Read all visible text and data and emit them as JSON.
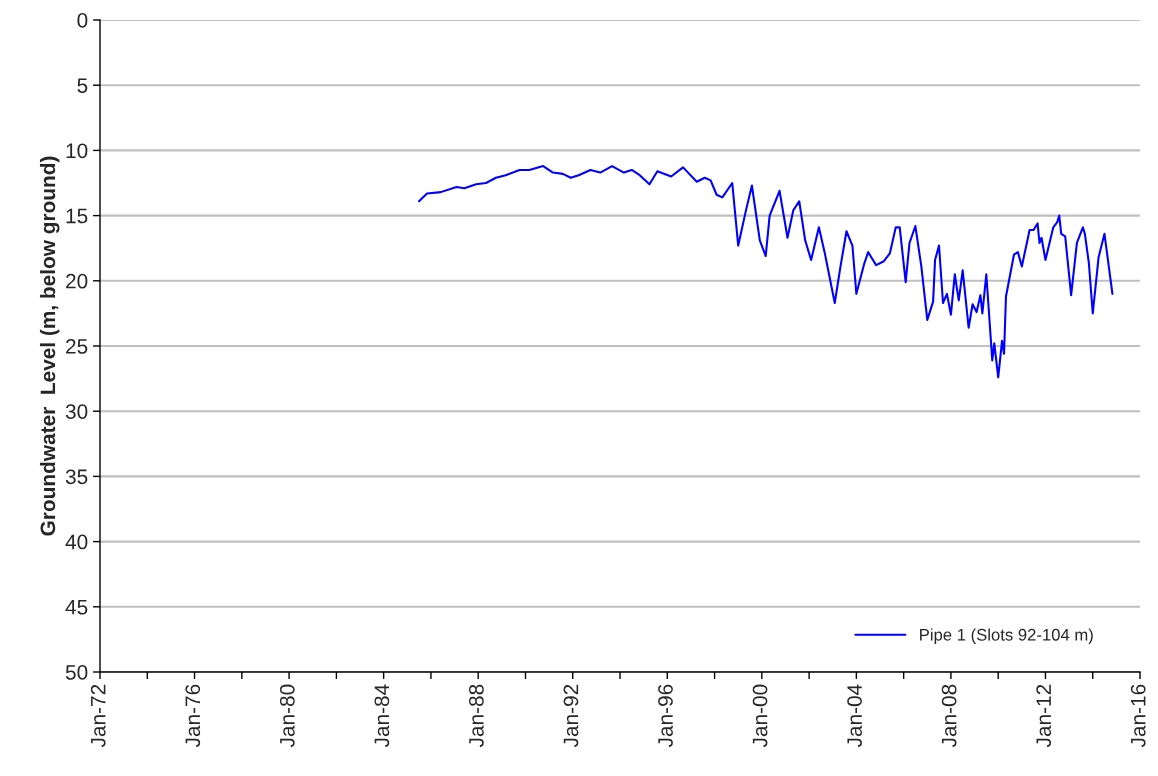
{
  "chart_data": {
    "type": "line",
    "ylabel": "Groundwater  Level (m, below ground)",
    "xlim": [
      "1972-01",
      "2016-01"
    ],
    "xticks": [
      {
        "value": "1972-01",
        "label": "Jan-72"
      },
      {
        "value": "1974-01",
        "label": null
      },
      {
        "value": "1976-01",
        "label": "Jan-76"
      },
      {
        "value": "1978-01",
        "label": null
      },
      {
        "value": "1980-01",
        "label": "Jan-80"
      },
      {
        "value": "1982-01",
        "label": null
      },
      {
        "value": "1984-01",
        "label": "Jan-84"
      },
      {
        "value": "1986-01",
        "label": null
      },
      {
        "value": "1988-01",
        "label": "Jan-88"
      },
      {
        "value": "1990-01",
        "label": null
      },
      {
        "value": "1992-01",
        "label": "Jan-92"
      },
      {
        "value": "1994-01",
        "label": null
      },
      {
        "value": "1996-01",
        "label": "Jan-96"
      },
      {
        "value": "1998-01",
        "label": null
      },
      {
        "value": "2000-01",
        "label": "Jan-00"
      },
      {
        "value": "2002-01",
        "label": null
      },
      {
        "value": "2004-01",
        "label": "Jan-04"
      },
      {
        "value": "2006-01",
        "label": null
      },
      {
        "value": "2008-01",
        "label": "Jan-08"
      },
      {
        "value": "2010-01",
        "label": null
      },
      {
        "value": "2012-01",
        "label": "Jan-12"
      },
      {
        "value": "2014-01",
        "label": null
      },
      {
        "value": "2016-01",
        "label": "Jan-16"
      }
    ],
    "ylim": [
      50,
      0
    ],
    "yticks": [
      0,
      5,
      10,
      15,
      20,
      25,
      30,
      35,
      40,
      45,
      50
    ],
    "grid": "y",
    "legend": "bottom right",
    "marker": "none",
    "line_style": "solid",
    "x": [
      "1985-07",
      "1985-11",
      "1986-06",
      "1987-02",
      "1987-06",
      "1987-12",
      "1988-05",
      "1988-10",
      "1989-03",
      "1989-10",
      "1990-03",
      "1990-10",
      "1991-03",
      "1991-08",
      "1991-12",
      "1992-04",
      "1992-10",
      "1993-03",
      "1993-09",
      "1994-03",
      "1994-07",
      "1994-11",
      "1995-04",
      "1995-08",
      "1996-03",
      "1996-09",
      "1997-04",
      "1997-08",
      "1997-11",
      "1998-02",
      "1998-05",
      "1998-10",
      "1999-01",
      "1999-05",
      "1999-08",
      "1999-12",
      "2000-03",
      "2000-05",
      "2000-10",
      "2001-02",
      "2001-05",
      "2001-08",
      "2001-11",
      "2002-02",
      "2002-06",
      "2002-09",
      "2003-02",
      "2003-05",
      "2003-08",
      "2003-11",
      "2004-01",
      "2004-05",
      "2004-07",
      "2004-11",
      "2005-03",
      "2005-06",
      "2005-09",
      "2005-11",
      "2006-02",
      "2006-04",
      "2006-07",
      "2006-10",
      "2007-01",
      "2007-04",
      "2007-05",
      "2007-07",
      "2007-09",
      "2007-11",
      "2008-01",
      "2008-03",
      "2008-05",
      "2008-07",
      "2008-10",
      "2008-12",
      "2009-02",
      "2009-04",
      "2009-05",
      "2009-07",
      "2009-10",
      "2009-11",
      "2010-01",
      "2010-03",
      "2010-04",
      "2010-05",
      "2010-09",
      "2010-11",
      "2011-01",
      "2011-05",
      "2011-07",
      "2011-09",
      "2011-10",
      "2011-11",
      "2012-01",
      "2012-05",
      "2012-07",
      "2012-08",
      "2012-09",
      "2012-11",
      "2013-02",
      "2013-05",
      "2013-08",
      "2013-09",
      "2013-11",
      "2014-01",
      "2014-04",
      "2014-07",
      "2014-11"
    ],
    "series": [
      {
        "name": "Pipe 1 (Slots 92-104 m)",
        "color": "#0000ff",
        "values": [
          13.9,
          13.3,
          13.2,
          12.8,
          12.9,
          12.6,
          12.5,
          12.1,
          11.9,
          11.5,
          11.5,
          11.2,
          11.7,
          11.8,
          12.1,
          11.9,
          11.5,
          11.7,
          11.2,
          11.7,
          11.5,
          11.9,
          12.6,
          11.6,
          12.0,
          11.3,
          12.4,
          12.1,
          12.3,
          13.4,
          13.6,
          12.5,
          17.3,
          14.6,
          12.7,
          16.9,
          18.1,
          15.0,
          13.1,
          16.7,
          14.6,
          13.9,
          16.9,
          18.4,
          15.9,
          17.9,
          21.7,
          18.9,
          16.2,
          17.3,
          21.0,
          18.7,
          17.8,
          18.8,
          18.5,
          17.9,
          15.9,
          15.9,
          20.1,
          17.1,
          15.8,
          18.9,
          23.0,
          21.6,
          18.4,
          17.3,
          21.7,
          21.0,
          22.6,
          19.5,
          21.5,
          19.2,
          23.6,
          21.8,
          22.4,
          21.1,
          22.5,
          19.5,
          26.1,
          24.8,
          27.4,
          24.6,
          25.6,
          21.2,
          18.0,
          17.8,
          18.9,
          16.1,
          16.1,
          15.6,
          17.1,
          16.7,
          18.4,
          15.9,
          15.5,
          15.0,
          16.4,
          16.6,
          21.1,
          17.1,
          15.9,
          16.4,
          18.6,
          22.5,
          18.2,
          16.4,
          21.0
        ]
      }
    ]
  }
}
